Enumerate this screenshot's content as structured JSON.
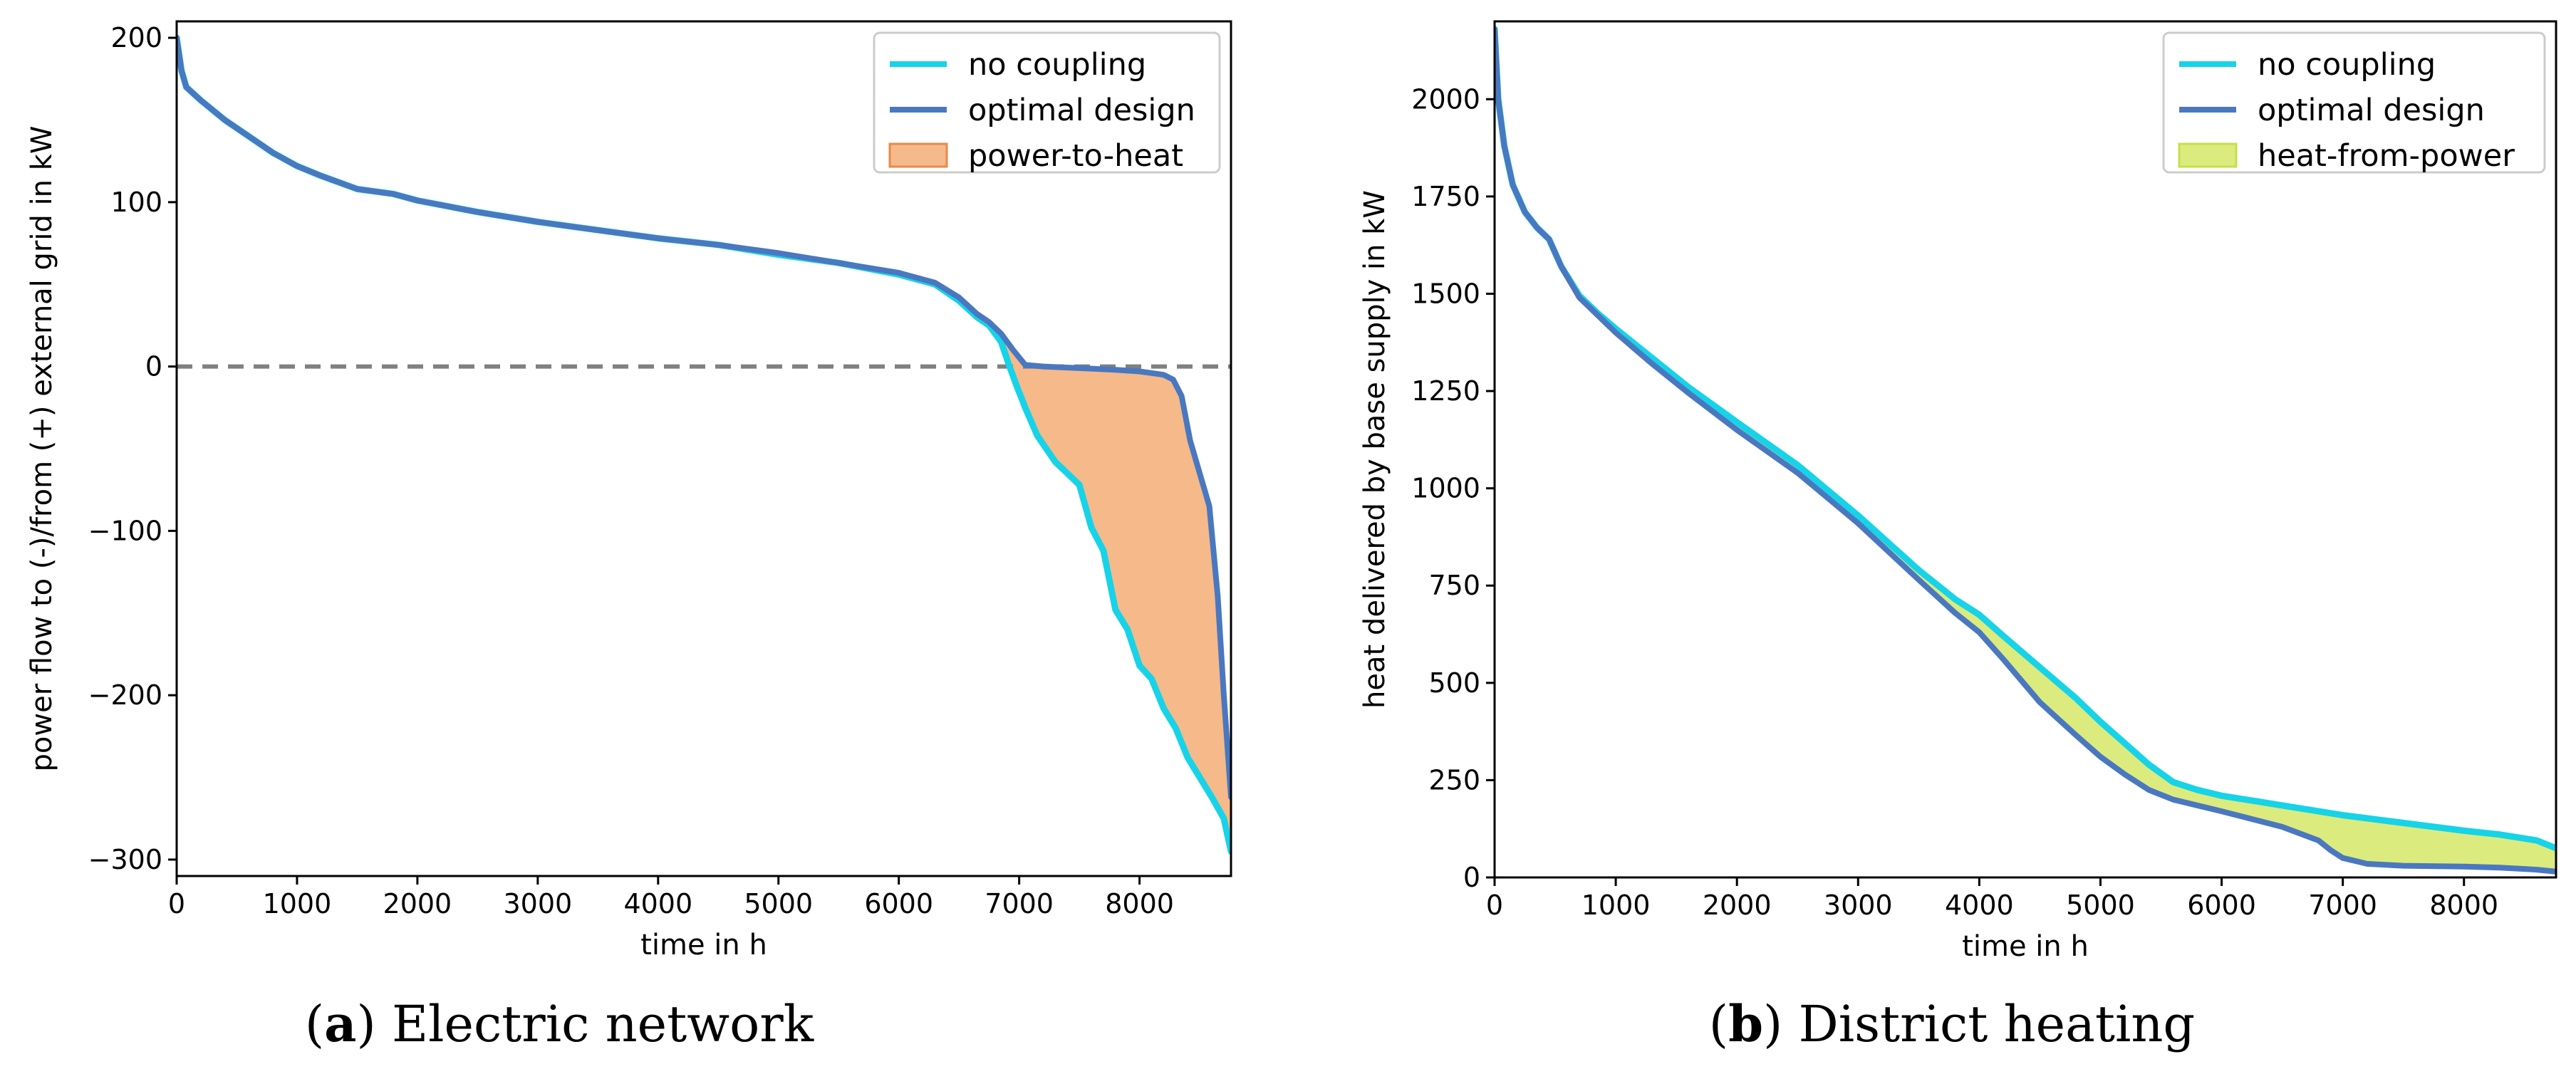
{
  "chart_data": [
    {
      "type": "line",
      "caption": {
        "letter": "a",
        "text": "Electric network"
      },
      "xlabel": "time in h",
      "ylabel": "power flow to (-)/from (+) external grid in kW",
      "xlim": [
        0,
        8760
      ],
      "ylim": [
        -310,
        210
      ],
      "xticks": [
        0,
        1000,
        2000,
        3000,
        4000,
        5000,
        6000,
        7000,
        8000
      ],
      "yticks": [
        -300,
        -200,
        -100,
        0,
        100,
        200
      ],
      "ytick_labels": [
        "−300",
        "−200",
        "−100",
        "0",
        "100",
        "200"
      ],
      "reference_line": {
        "y": 0,
        "style": "dashed",
        "color": "#808080"
      },
      "legend": {
        "position": "top-right",
        "entries": [
          "no coupling",
          "optimal design",
          "power-to-heat"
        ]
      },
      "series": [
        {
          "name": "no coupling",
          "color": "#17d3e8",
          "x": [
            0,
            40,
            80,
            200,
            400,
            600,
            800,
            1000,
            1200,
            1500,
            1800,
            2000,
            2500,
            3000,
            3500,
            4000,
            4500,
            5000,
            5500,
            6000,
            6300,
            6500,
            6650,
            6750,
            6850,
            6920,
            6980,
            7050,
            7150,
            7300,
            7400,
            7500,
            7600,
            7700,
            7800,
            7900,
            8000,
            8100,
            8200,
            8300,
            8400,
            8500,
            8600,
            8700,
            8760
          ],
          "values": [
            200,
            180,
            170,
            162,
            150,
            140,
            130,
            122,
            116,
            108,
            105,
            101,
            94,
            88,
            83,
            78,
            74,
            68,
            63,
            56,
            50,
            40,
            30,
            25,
            15,
            0,
            -12,
            -25,
            -42,
            -58,
            -65,
            -72,
            -98,
            -112,
            -148,
            -160,
            -182,
            -190,
            -208,
            -220,
            -238,
            -250,
            -262,
            -275,
            -295
          ]
        },
        {
          "name": "optimal design",
          "color": "#4a78c0",
          "x": [
            0,
            40,
            80,
            200,
            400,
            600,
            800,
            1000,
            1200,
            1500,
            1800,
            2000,
            2500,
            3000,
            3500,
            4000,
            4500,
            5000,
            5500,
            6000,
            6300,
            6500,
            6650,
            6750,
            6850,
            6950,
            7050,
            7200,
            7500,
            7800,
            8000,
            8200,
            8280,
            8350,
            8420,
            8500,
            8580,
            8650,
            8700,
            8760
          ],
          "values": [
            200,
            180,
            170,
            162,
            150,
            140,
            130,
            122,
            116,
            108,
            105,
            101,
            94,
            88,
            83,
            78,
            74,
            69,
            63,
            57,
            51,
            42,
            32,
            27,
            20,
            10,
            1,
            0,
            -1,
            -2,
            -3,
            -5,
            -8,
            -18,
            -45,
            -65,
            -85,
            -140,
            -200,
            -262
          ]
        }
      ],
      "fill_between": {
        "name": "power-to-heat",
        "between": [
          "no coupling",
          "optimal design"
        ],
        "color": "#f6b98a",
        "edge_color": "#e8894a"
      }
    },
    {
      "type": "line",
      "caption": {
        "letter": "b",
        "text": "District heating"
      },
      "xlabel": "time in h",
      "ylabel": "heat delivered by base supply in kW",
      "xlim": [
        0,
        8760
      ],
      "ylim": [
        0,
        2200
      ],
      "xticks": [
        0,
        1000,
        2000,
        3000,
        4000,
        5000,
        6000,
        7000,
        8000
      ],
      "yticks": [
        0,
        250,
        500,
        750,
        1000,
        1250,
        1500,
        1750,
        2000
      ],
      "ytick_labels": [
        "0",
        "250",
        "500",
        "750",
        "1000",
        "1250",
        "1500",
        "1750",
        "2000"
      ],
      "legend": {
        "position": "top-right",
        "entries": [
          "no coupling",
          "optimal design",
          "heat-from-power"
        ]
      },
      "series": [
        {
          "name": "no coupling",
          "color": "#17d3e8",
          "x": [
            0,
            30,
            80,
            150,
            250,
            350,
            450,
            550,
            700,
            850,
            1000,
            1300,
            1600,
            2000,
            2500,
            3000,
            3500,
            3800,
            4000,
            4200,
            4500,
            4800,
            5000,
            5200,
            5400,
            5600,
            5800,
            6000,
            6500,
            7000,
            7500,
            8000,
            8300,
            8600,
            8760
          ],
          "values": [
            2180,
            2000,
            1880,
            1780,
            1710,
            1670,
            1640,
            1570,
            1495,
            1450,
            1410,
            1335,
            1260,
            1170,
            1060,
            930,
            790,
            715,
            675,
            620,
            540,
            460,
            400,
            345,
            290,
            245,
            225,
            210,
            185,
            160,
            140,
            120,
            110,
            95,
            75
          ]
        },
        {
          "name": "optimal design",
          "color": "#4a78c0",
          "x": [
            0,
            30,
            80,
            150,
            250,
            350,
            450,
            550,
            700,
            850,
            1000,
            1300,
            1600,
            2000,
            2500,
            3000,
            3500,
            3800,
            4000,
            4200,
            4500,
            4800,
            5000,
            5200,
            5400,
            5600,
            6000,
            6500,
            6800,
            6900,
            7000,
            7200,
            7500,
            8000,
            8300,
            8600,
            8760
          ],
          "values": [
            2180,
            2000,
            1880,
            1780,
            1710,
            1670,
            1640,
            1570,
            1490,
            1445,
            1400,
            1320,
            1245,
            1150,
            1040,
            910,
            765,
            680,
            630,
            560,
            450,
            365,
            310,
            265,
            225,
            200,
            170,
            130,
            95,
            70,
            50,
            35,
            30,
            28,
            25,
            20,
            15
          ]
        }
      ],
      "fill_between": {
        "name": "heat-from-power",
        "between": [
          "no coupling",
          "optimal design"
        ],
        "color": "#dceb7e",
        "edge_color": "#c5e04a"
      }
    }
  ]
}
